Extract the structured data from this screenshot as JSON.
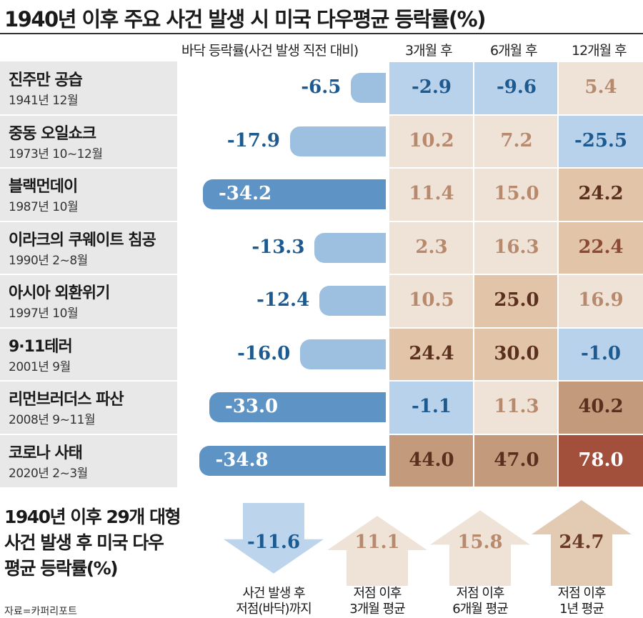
{
  "title": "1940년 이후 주요 사건 발생 시 미국 다우평균 등락률(%)",
  "headers": {
    "bottom": "바닥 등락률(사건 발생 직전 대비)",
    "m3": "3개월 후",
    "m6": "6개월 후",
    "m12": "12개월 후"
  },
  "colors": {
    "bar_blue": "#9dbfe0",
    "bar_blue_dark": "#5e93c6",
    "neg_text": "#1d5a8f",
    "pos_text_light": "#b78a6e",
    "pos_text_dark": "#5a2f1e",
    "cell_blue": "#b9d2ec",
    "cell_cream": "#efe3d8",
    "cell_tan": "#e2c4a9",
    "cell_brown": "#c49a7d",
    "cell_dark": "#a24f3b"
  },
  "events": [
    {
      "name": "진주만 공습",
      "date": "1941년 12월"
    },
    {
      "name": "중동 오일쇼크",
      "date": "1973년 10~12월"
    },
    {
      "name": "블랙먼데이",
      "date": "1987년 10월"
    },
    {
      "name": "이라크의 쿠웨이트 침공",
      "date": "1990년 2~8월"
    },
    {
      "name": "아시아 외환위기",
      "date": "1997년 10월"
    },
    {
      "name": "9·11테러",
      "date": "2001년 9월"
    },
    {
      "name": "리먼브러더스 파산",
      "date": "2008년 9~11월"
    },
    {
      "name": "코로나 사태",
      "date": "2020년 2~3월"
    }
  ],
  "chart_data": {
    "type": "table",
    "title": "1940년 이후 주요 사건 발생 시 미국 다우평균 등락률(%)",
    "columns": [
      "바닥 등락률(사건 발생 직전 대비)",
      "3개월 후",
      "6개월 후",
      "12개월 후"
    ],
    "categories": [
      "진주만 공습",
      "중동 오일쇼크",
      "블랙먼데이",
      "이라크의 쿠웨이트 침공",
      "아시아 외환위기",
      "9·11테러",
      "리먼브러더스 파산",
      "코로나 사태"
    ],
    "series": [
      {
        "name": "바닥 등락률(사건 발생 직전 대비)",
        "values": [
          -6.5,
          -17.9,
          -34.2,
          -13.3,
          -12.4,
          -16.0,
          -33.0,
          -34.8
        ],
        "labels": [
          "-6.5",
          "-17.9",
          "-34.2",
          "-13.3",
          "-12.4",
          "-16.0",
          "-33.0",
          "-34.8"
        ]
      },
      {
        "name": "3개월 후",
        "values": [
          -2.9,
          10.2,
          11.4,
          2.3,
          10.5,
          24.4,
          -1.1,
          44.0
        ],
        "labels": [
          "-2.9",
          "10.2",
          "11.4",
          "2.3",
          "10.5",
          "24.4",
          "-1.1",
          "44.0"
        ]
      },
      {
        "name": "6개월 후",
        "values": [
          -9.6,
          7.2,
          15.0,
          16.3,
          25.0,
          30.0,
          11.3,
          47.0
        ],
        "labels": [
          "-9.6",
          "7.2",
          "15.0",
          "16.3",
          "25.0",
          "30.0",
          "11.3",
          "47.0"
        ]
      },
      {
        "name": "12개월 후",
        "values": [
          5.4,
          -25.5,
          24.2,
          22.4,
          16.9,
          -1.0,
          40.2,
          78.0
        ],
        "labels": [
          "5.4",
          "-25.5",
          "24.2",
          "22.4",
          "16.9",
          "-1.0",
          "40.2",
          "78.0"
        ]
      }
    ]
  },
  "summary": {
    "title_lines": [
      "1940년 이후 29개 대형",
      "사건 발생 후 미국 다우",
      "평균 등락률(%)"
    ],
    "items": [
      {
        "value": -11.6,
        "label": "-11.6",
        "caption": [
          "사건 발생 후",
          "저점(바닥)까지"
        ]
      },
      {
        "value": 11.1,
        "label": "11.1",
        "caption": [
          "저점 이후",
          "3개월 평균"
        ]
      },
      {
        "value": 15.8,
        "label": "15.8",
        "caption": [
          "저점 이후",
          "6개월 평균"
        ]
      },
      {
        "value": 24.7,
        "label": "24.7",
        "caption": [
          "저점 이후",
          "1년 평균"
        ]
      }
    ]
  },
  "source": "자료=카퍼리포트"
}
